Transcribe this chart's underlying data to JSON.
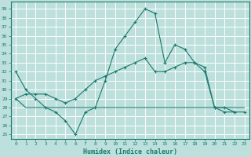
{
  "xlabel": "Humidex (Indice chaleur)",
  "background_color": "#bde0dc",
  "grid_color": "#ffffff",
  "line_color": "#1a7a6e",
  "xlim": [
    -0.5,
    23.5
  ],
  "ylim": [
    24.5,
    39.8
  ],
  "yticks": [
    25,
    26,
    27,
    28,
    29,
    30,
    31,
    32,
    33,
    34,
    35,
    36,
    37,
    38,
    39
  ],
  "xticks": [
    0,
    1,
    2,
    3,
    4,
    5,
    6,
    7,
    8,
    9,
    10,
    11,
    12,
    13,
    14,
    15,
    16,
    17,
    18,
    19,
    20,
    21,
    22,
    23
  ],
  "line1_x": [
    0,
    1,
    2,
    3,
    4,
    5,
    6,
    7,
    8,
    9,
    10,
    11,
    12,
    13,
    14,
    15,
    16,
    17,
    18,
    19,
    20,
    21,
    22
  ],
  "line1_y": [
    32,
    30,
    29,
    28,
    27.5,
    26.5,
    25,
    27.5,
    28,
    31,
    34.5,
    36,
    37.5,
    39,
    38.5,
    33,
    35,
    34.5,
    33,
    32.5,
    28,
    28,
    27.5
  ],
  "line2_x": [
    0,
    1,
    2,
    3,
    4,
    5,
    6,
    7,
    8,
    9,
    10,
    11,
    12,
    13,
    14,
    15,
    16,
    17,
    18,
    19,
    20,
    21,
    22,
    23
  ],
  "line2_y": [
    29,
    29.5,
    29.5,
    29.5,
    29,
    28.5,
    29,
    30,
    31,
    31.5,
    32,
    32.5,
    33,
    33.5,
    32,
    32,
    32.5,
    33,
    33,
    32,
    28,
    27.5,
    27.5,
    27.5
  ],
  "line3_x": [
    0,
    1,
    2,
    3,
    4,
    5,
    6,
    7,
    8,
    9,
    10,
    11,
    12,
    13,
    14,
    15,
    16,
    17,
    18,
    19,
    20,
    21,
    22,
    23
  ],
  "line3_y": [
    29,
    28,
    28,
    28,
    28,
    28,
    28,
    28,
    28,
    28,
    28,
    28,
    28,
    28,
    28,
    28,
    28,
    28,
    28,
    28,
    28,
    28,
    28,
    28
  ]
}
